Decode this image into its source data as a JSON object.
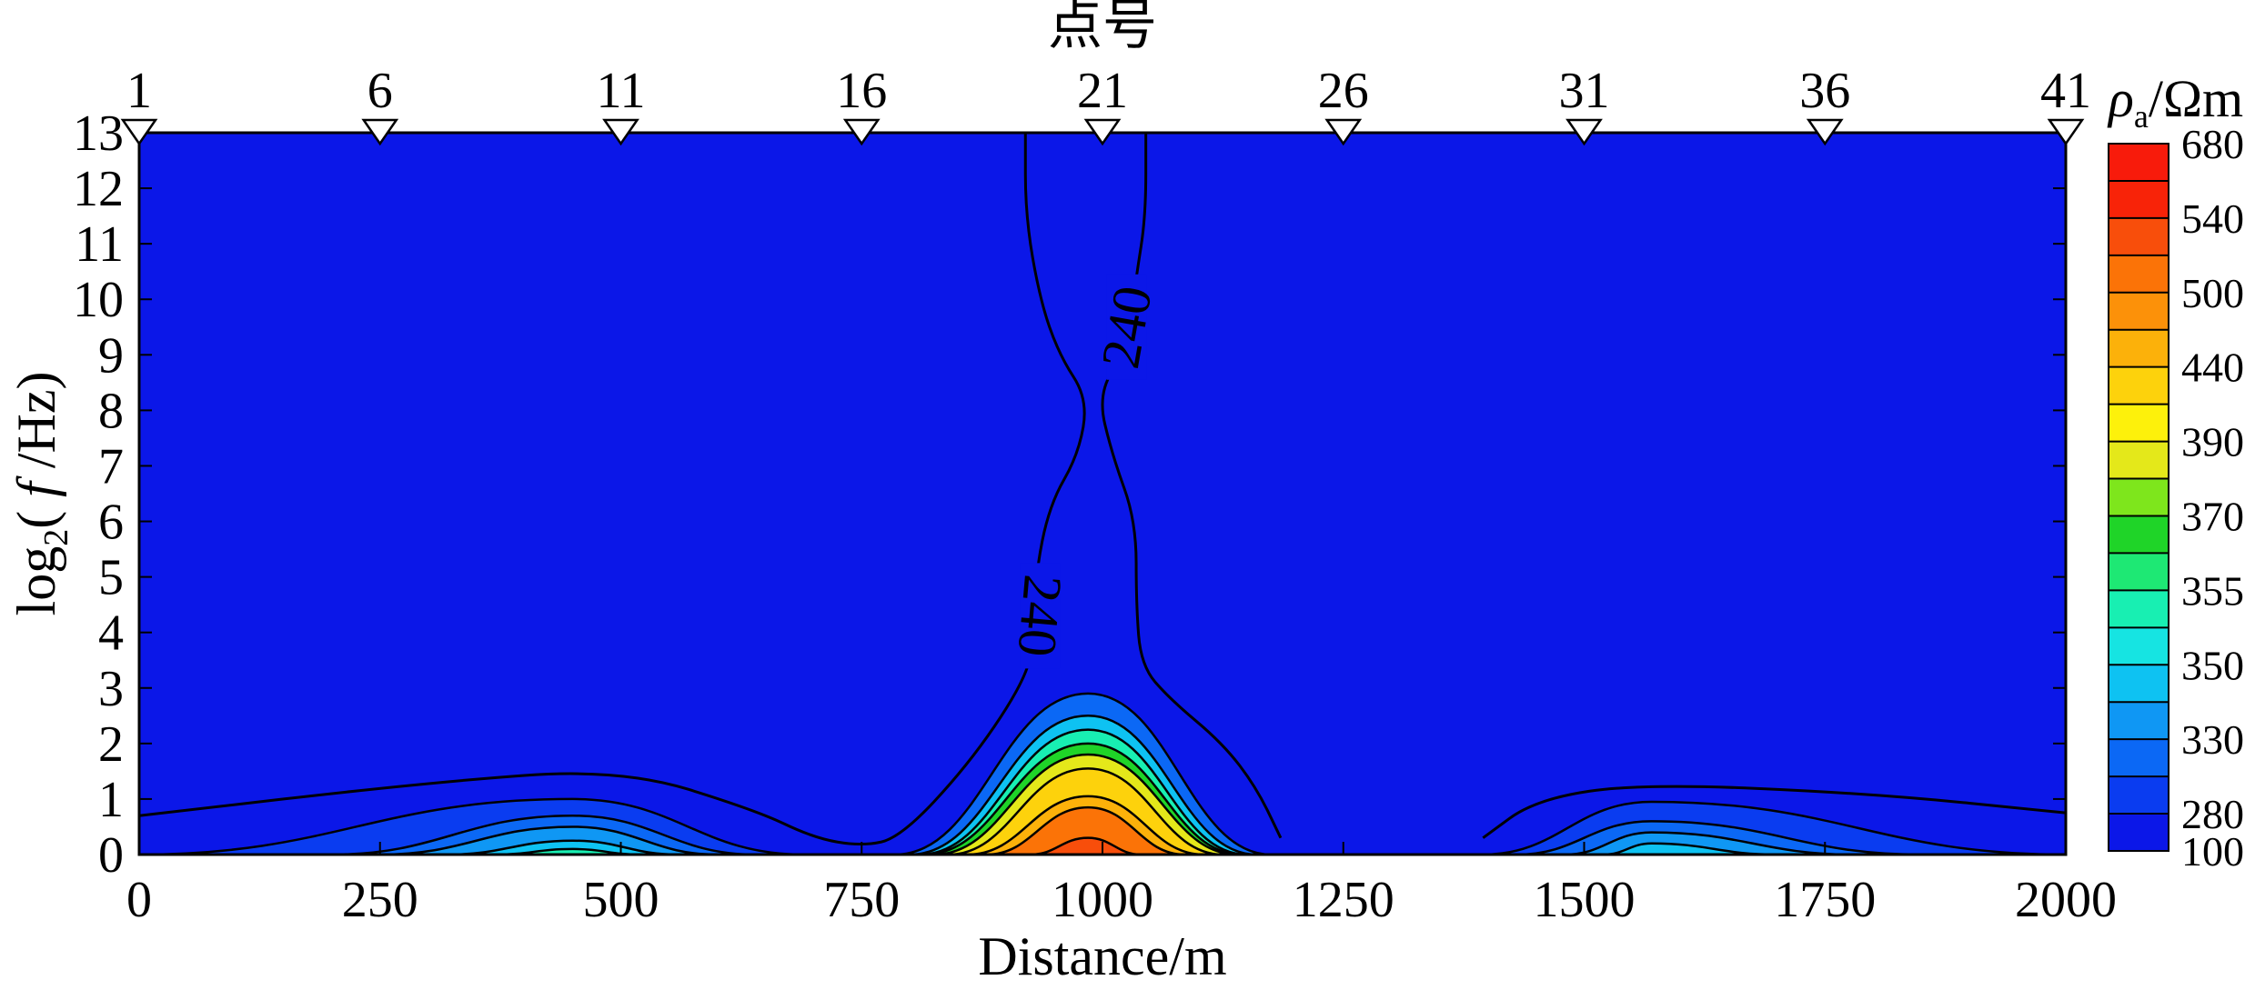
{
  "chart_data": {
    "type": "contour",
    "top_title": "点号",
    "xlabel": "Distance/m",
    "ylabel_parts": {
      "prefix": "log",
      "sub": "2",
      "paren_open": "( ",
      "var": "f",
      "unit": " /Hz)"
    },
    "xlim": [
      0,
      2000
    ],
    "ylim": [
      0,
      13
    ],
    "x_ticks": [
      "0",
      "250",
      "500",
      "750",
      "1000",
      "1250",
      "1500",
      "1750",
      "2000"
    ],
    "y_ticks": [
      "0",
      "1",
      "2",
      "3",
      "4",
      "5",
      "6",
      "7",
      "8",
      "9",
      "10",
      "11",
      "12",
      "13"
    ],
    "stations": [
      {
        "label": "1",
        "x": 0
      },
      {
        "label": "6",
        "x": 250
      },
      {
        "label": "11",
        "x": 500
      },
      {
        "label": "16",
        "x": 750
      },
      {
        "label": "21",
        "x": 1000
      },
      {
        "label": "26",
        "x": 1250
      },
      {
        "label": "31",
        "x": 1500
      },
      {
        "label": "36",
        "x": 1750
      },
      {
        "label": "41",
        "x": 2000
      }
    ],
    "colorbar": {
      "title_symbol": "ρ",
      "title_sub": "a",
      "title_unit": "/Ωm",
      "labels": [
        "100",
        "280",
        "330",
        "350",
        "355",
        "370",
        "390",
        "440",
        "500",
        "540",
        "680"
      ],
      "colors": [
        "#0b17e8",
        "#0a3cf0",
        "#0b68f5",
        "#0f97f4",
        "#0ec2f2",
        "#16e4e2",
        "#18efb2",
        "#1ee874",
        "#1fd428",
        "#7ee61c",
        "#e4e81a",
        "#fdf10b",
        "#fdd20c",
        "#fcb10a",
        "#fc9109",
        "#fb7307",
        "#f84e0b",
        "#f82308",
        "#f81b0b"
      ]
    },
    "contour_labels": [
      {
        "text": "240",
        "x": 1025,
        "y": 9.5,
        "rotation": -80
      },
      {
        "text": "240",
        "x": 935,
        "y": 4.3,
        "rotation": 95
      }
    ],
    "anomalies": [
      {
        "name": "central high-resistivity body",
        "center_x": 985,
        "bands": [
          {
            "x0": 785,
            "x1": 1175,
            "y_peak": 2.9,
            "color": "#0b68f5"
          },
          {
            "x0": 800,
            "x1": 1160,
            "y_peak": 2.5,
            "color": "#0ec2f2"
          },
          {
            "x0": 810,
            "x1": 1150,
            "y_peak": 2.25,
            "color": "#18efb2"
          },
          {
            "x0": 815,
            "x1": 1145,
            "y_peak": 2.0,
            "color": "#1fd428"
          },
          {
            "x0": 825,
            "x1": 1140,
            "y_peak": 1.8,
            "color": "#e4e81a"
          },
          {
            "x0": 840,
            "x1": 1125,
            "y_peak": 1.55,
            "color": "#fdd20c"
          },
          {
            "x0": 860,
            "x1": 1105,
            "y_peak": 1.05,
            "color": "#fcb10a"
          },
          {
            "x0": 880,
            "x1": 1085,
            "y_peak": 0.85,
            "color": "#fb7307"
          },
          {
            "x0": 925,
            "x1": 1040,
            "y_peak": 0.3,
            "color": "#f84e0b"
          }
        ]
      },
      {
        "name": "west low anomaly",
        "center_x": 450,
        "bands": [
          {
            "x0": 0,
            "x1": 690,
            "y_peak": 1.0,
            "color": "#0a3cf0"
          },
          {
            "x0": 200,
            "x1": 640,
            "y_peak": 0.7,
            "color": "#0b68f5"
          },
          {
            "x0": 250,
            "x1": 600,
            "y_peak": 0.5,
            "color": "#0f97f4"
          },
          {
            "x0": 320,
            "x1": 560,
            "y_peak": 0.25,
            "color": "#0ec2f2"
          },
          {
            "x0": 370,
            "x1": 520,
            "y_peak": 0.1,
            "color": "#18efb2"
          }
        ]
      },
      {
        "name": "east low anomaly",
        "center_x": 1570,
        "bands": [
          {
            "x0": 1395,
            "x1": 2000,
            "y_peak": 0.95,
            "color": "#0a3cf0"
          },
          {
            "x0": 1430,
            "x1": 1850,
            "y_peak": 0.6,
            "color": "#0b68f5"
          },
          {
            "x0": 1480,
            "x1": 1780,
            "y_peak": 0.4,
            "color": "#0f97f4"
          },
          {
            "x0": 1520,
            "x1": 1700,
            "y_peak": 0.2,
            "color": "#0ec2f2"
          }
        ]
      }
    ],
    "background_color": "#0b17e8"
  }
}
